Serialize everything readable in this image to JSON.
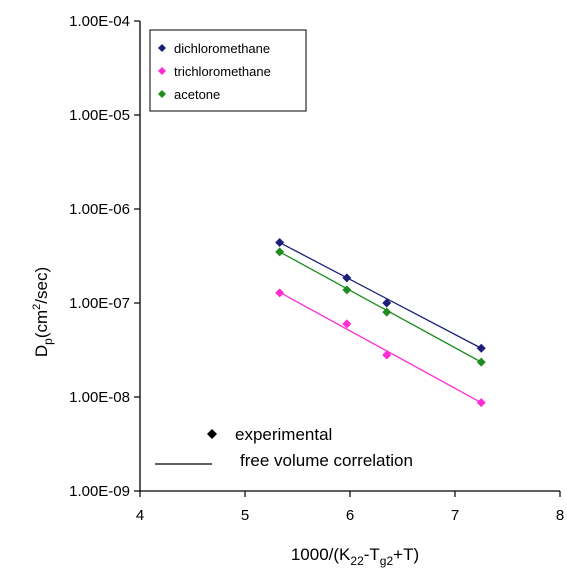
{
  "chart_data": {
    "type": "scatter",
    "xlabel": {
      "base": "1000/(K",
      "sub1": "22",
      "mid": "-T",
      "sub2": "g2",
      "tail": "+T)"
    },
    "ylabel": {
      "base": "D",
      "sub": "p",
      "unit_open": "(cm",
      "sup": "2",
      "unit_close": "/sec)"
    },
    "xlim": [
      4,
      8
    ],
    "ylim": [
      1e-09,
      0.0001
    ],
    "y_scale": "log",
    "x_ticks": [
      4,
      5,
      6,
      7,
      8
    ],
    "x_tick_labels": [
      "4",
      "5",
      "6",
      "7",
      "8"
    ],
    "y_ticks": [
      1e-09,
      1e-08,
      1e-07,
      1e-06,
      1e-05,
      0.0001
    ],
    "y_tick_labels": [
      "1.00E-09",
      "1.00E-08",
      "1.00E-07",
      "1.00E-06",
      "1.00E-05",
      "1.00E-04"
    ],
    "grid": false,
    "legend_position": "top-left",
    "series": [
      {
        "name": "dichloromethane",
        "color": "#1b1f7a",
        "x": [
          5.33,
          5.97,
          6.35,
          7.25
        ],
        "y": [
          4.4e-07,
          1.85e-07,
          1e-07,
          3.3e-08
        ],
        "fit": {
          "x": [
            5.33,
            7.25
          ],
          "y": [
            4.4e-07,
            3.3e-08
          ]
        }
      },
      {
        "name": "trichloromethane",
        "color": "#ff2bd6",
        "x": [
          5.33,
          5.97,
          6.35,
          7.25
        ],
        "y": [
          1.28e-07,
          6e-08,
          2.8e-08,
          8.7e-09
        ],
        "fit": {
          "x": [
            5.33,
            7.25
          ],
          "y": [
            1.3e-07,
            8.7e-09
          ]
        }
      },
      {
        "name": "acetone",
        "color": "#1e8c1e",
        "x": [
          5.33,
          5.97,
          6.35,
          7.25
        ],
        "y": [
          3.5e-07,
          1.38e-07,
          8e-08,
          2.35e-08
        ],
        "fit": {
          "x": [
            5.33,
            7.25
          ],
          "y": [
            3.5e-07,
            2.35e-08
          ]
        }
      }
    ],
    "key": {
      "marker_label": "experimental",
      "line_label": "free volume correlation"
    }
  }
}
